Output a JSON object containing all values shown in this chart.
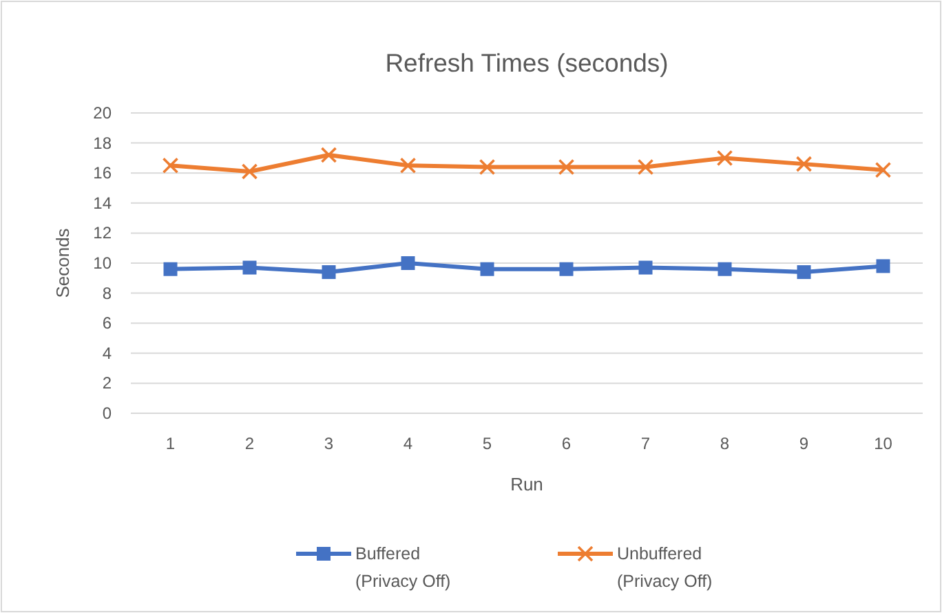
{
  "chart_data": {
    "type": "line",
    "title": "Refresh Times (seconds)",
    "xlabel": "Run",
    "ylabel": "Seconds",
    "categories": [
      "1",
      "2",
      "3",
      "4",
      "5",
      "6",
      "7",
      "8",
      "9",
      "10"
    ],
    "series": [
      {
        "name": "Buffered (Privacy Off)",
        "color": "#4472c4",
        "marker": "square",
        "values": [
          9.6,
          9.7,
          9.4,
          10.0,
          9.6,
          9.6,
          9.7,
          9.6,
          9.4,
          9.8
        ]
      },
      {
        "name": "Unbuffered (Privacy Off)",
        "color": "#ed7d31",
        "marker": "cross",
        "values": [
          16.5,
          16.1,
          17.2,
          16.5,
          16.4,
          16.4,
          16.4,
          17.0,
          16.6,
          16.2
        ]
      }
    ],
    "ylim": [
      0,
      20
    ],
    "yticks": [
      0,
      2,
      4,
      6,
      8,
      10,
      12,
      14,
      16,
      18,
      20
    ],
    "grid": "y",
    "legend": "bottom"
  }
}
